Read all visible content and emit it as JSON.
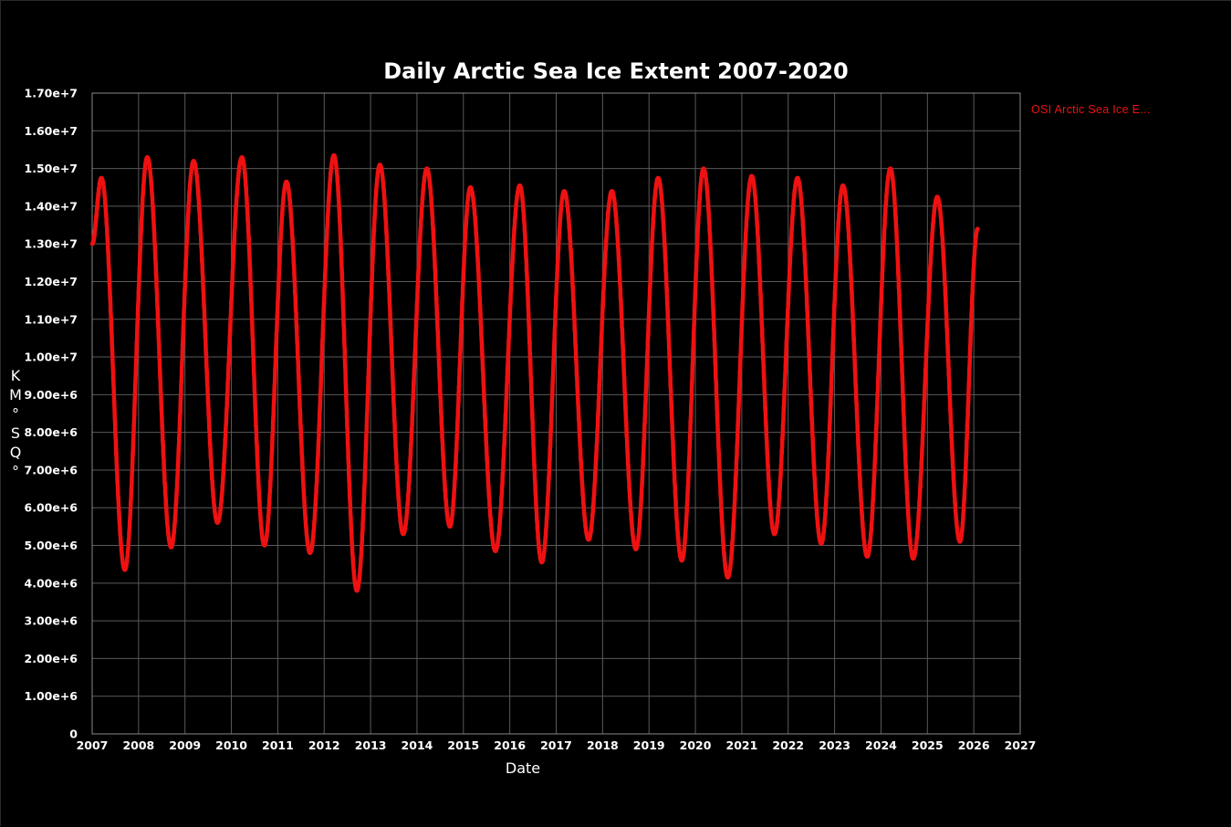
{
  "chart_data": {
    "type": "line",
    "title": "Daily Arctic Sea Ice Extent 2007-2020",
    "xlabel": "Date",
    "ylabel": [
      "K",
      "M",
      "°",
      "S",
      "Q",
      "°"
    ],
    "xlim": [
      2007,
      2027
    ],
    "ylim": [
      0,
      17000000
    ],
    "x_ticks": [
      "2007",
      "2008",
      "2009",
      "2010",
      "2011",
      "2012",
      "2013",
      "2014",
      "2015",
      "2016",
      "2017",
      "2018",
      "2019",
      "2020",
      "2021",
      "2022",
      "2023",
      "2024",
      "2025",
      "2026",
      "2027"
    ],
    "y_ticks": [
      "0",
      "1.00e+6",
      "2.00e+6",
      "3.00e+6",
      "4.00e+6",
      "5.00e+6",
      "6.00e+6",
      "7.00e+6",
      "8.00e+6",
      "9.00e+6",
      "1.00e+7",
      "1.10e+7",
      "1.20e+7",
      "1.30e+7",
      "1.40e+7",
      "1.50e+7",
      "1.60e+7",
      "1.70e+7"
    ],
    "grid": true,
    "legend_position": "top-right",
    "series": [
      {
        "name": "OSI  Arctic  Sea  Ice  E...",
        "color": "#ee1111",
        "start_value": 13000000,
        "end_value": 13400000,
        "annual_extremes": [
          {
            "year": 2007,
            "max": 14750000,
            "max_date": "2007-03-15",
            "min": 4350000,
            "min_date": "2007-09-15"
          },
          {
            "year": 2008,
            "max": 15300000,
            "max_date": "2008-03-10",
            "min": 4950000,
            "min_date": "2008-09-14"
          },
          {
            "year": 2009,
            "max": 15200000,
            "max_date": "2009-03-10",
            "min": 5600000,
            "min_date": "2009-09-14"
          },
          {
            "year": 2010,
            "max": 15300000,
            "max_date": "2010-03-25",
            "min": 5000000,
            "min_date": "2010-09-18"
          },
          {
            "year": 2011,
            "max": 14650000,
            "max_date": "2011-03-10",
            "min": 4800000,
            "min_date": "2011-09-12"
          },
          {
            "year": 2012,
            "max": 15350000,
            "max_date": "2012-03-18",
            "min": 3800000,
            "min_date": "2012-09-15"
          },
          {
            "year": 2013,
            "max": 15100000,
            "max_date": "2013-03-15",
            "min": 5300000,
            "min_date": "2013-09-15"
          },
          {
            "year": 2014,
            "max": 15000000,
            "max_date": "2014-03-20",
            "min": 5500000,
            "min_date": "2014-09-17"
          },
          {
            "year": 2015,
            "max": 14500000,
            "max_date": "2015-02-25",
            "min": 4850000,
            "min_date": "2015-09-10"
          },
          {
            "year": 2016,
            "max": 14550000,
            "max_date": "2016-03-20",
            "min": 4550000,
            "min_date": "2016-09-09"
          },
          {
            "year": 2017,
            "max": 14400000,
            "max_date": "2017-03-05",
            "min": 5150000,
            "min_date": "2017-09-13"
          },
          {
            "year": 2018,
            "max": 14400000,
            "max_date": "2018-03-15",
            "min": 4900000,
            "min_date": "2018-09-20"
          },
          {
            "year": 2019,
            "max": 14750000,
            "max_date": "2019-03-14",
            "min": 4600000,
            "min_date": "2019-09-16"
          },
          {
            "year": 2020,
            "max": 15000000,
            "max_date": "2020-03-05",
            "min": 4150000,
            "min_date": "2020-09-13"
          },
          {
            "year": 2021,
            "max": 14800000,
            "max_date": "2021-03-20",
            "min": 5300000,
            "min_date": "2021-09-15"
          },
          {
            "year": 2022,
            "max": 14750000,
            "max_date": "2022-03-15",
            "min": 5050000,
            "min_date": "2022-09-18"
          },
          {
            "year": 2023,
            "max": 14550000,
            "max_date": "2023-03-08",
            "min": 4700000,
            "min_date": "2023-09-15"
          },
          {
            "year": 2024,
            "max": 15000000,
            "max_date": "2024-03-15",
            "min": 4650000,
            "min_date": "2024-09-11"
          },
          {
            "year": 2025,
            "max": 14250000,
            "max_date": "2025-03-20",
            "min": 5100000,
            "min_date": "2025-09-14"
          }
        ],
        "end_date": "2026-02-01"
      }
    ]
  }
}
